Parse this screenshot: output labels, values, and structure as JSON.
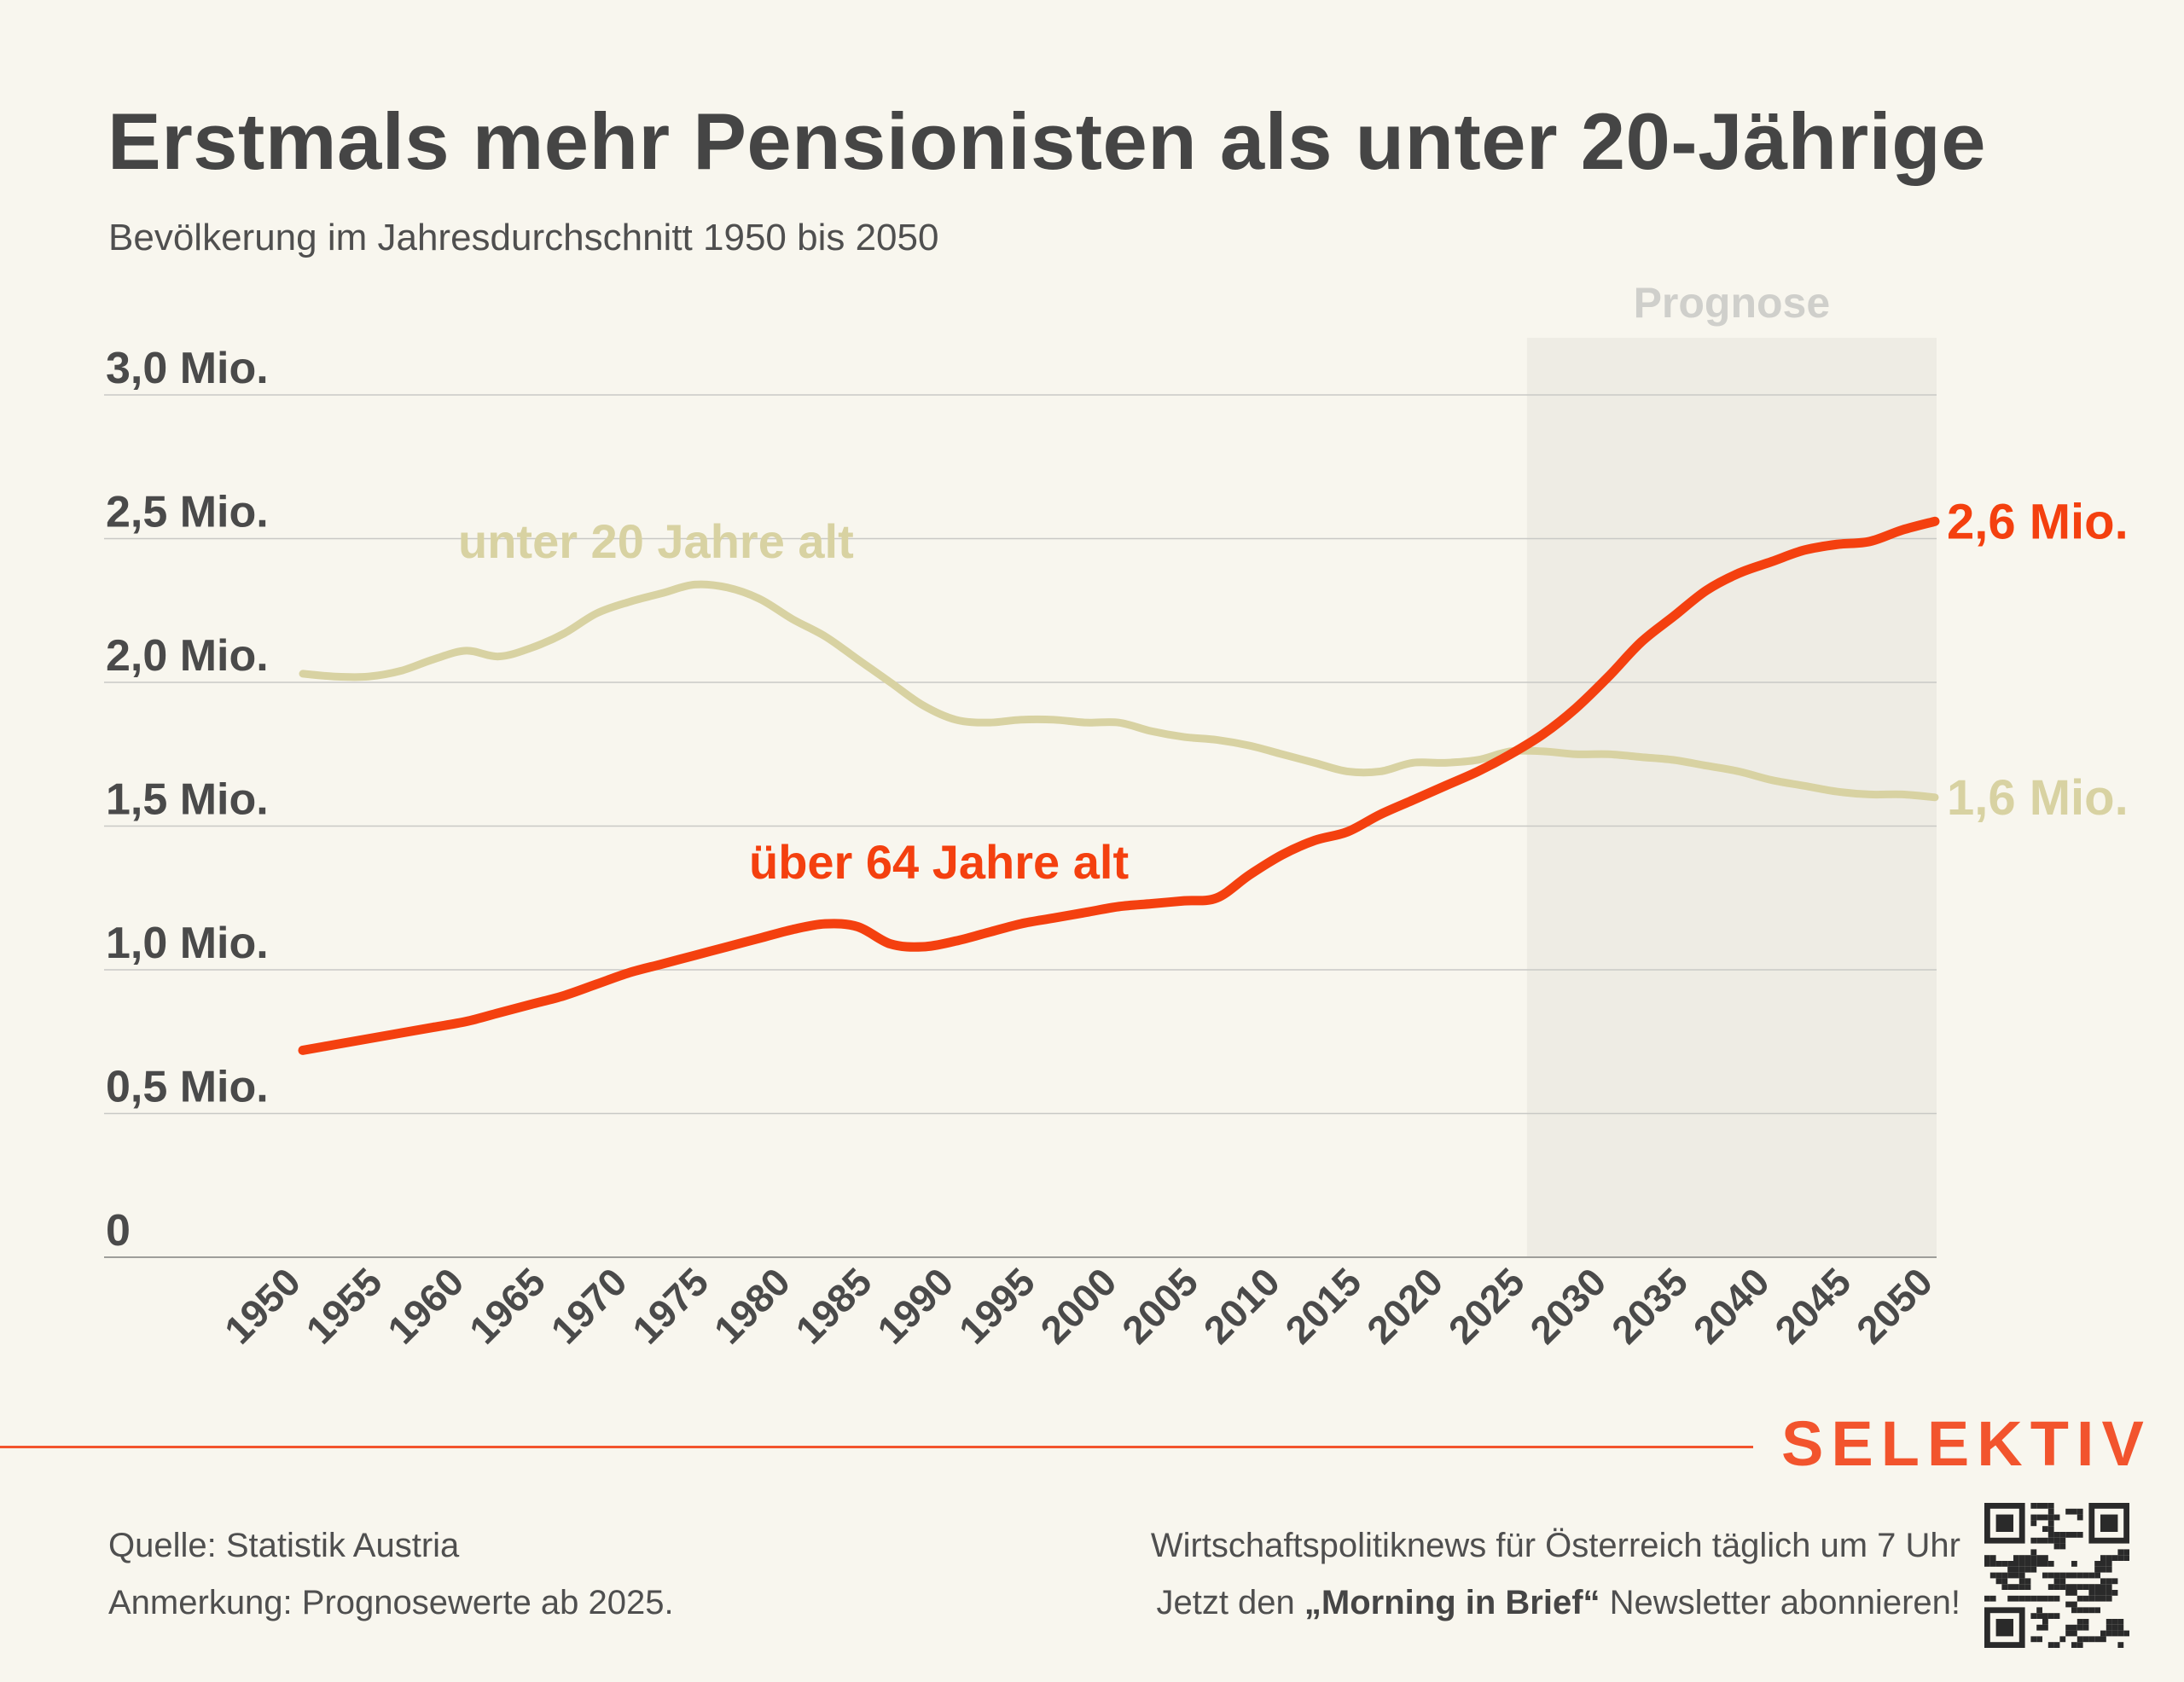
{
  "title": "Erstmals mehr Pensionisten als unter 20-Jährige",
  "subtitle": "Bevölkerung im Jahresdurchschnitt 1950 bis 2050",
  "colors": {
    "background": "#f8f6ee",
    "over64": "#f4400f",
    "over64_forecast": "#f2542d",
    "under20": "#d8d2a2",
    "grid": "#c9c9c5",
    "forecast_band": "#eeece4",
    "brand": "#f2542d"
  },
  "chart_data": {
    "type": "line",
    "forecast_label": "Prognose",
    "forecast_start": 2025,
    "y_ticks": [
      {
        "value": 0,
        "label": "0"
      },
      {
        "value": 0.5,
        "label": "0,5 Mio."
      },
      {
        "value": 1.0,
        "label": "1,0 Mio."
      },
      {
        "value": 1.5,
        "label": "1,5 Mio."
      },
      {
        "value": 2.0,
        "label": "2,0 Mio."
      },
      {
        "value": 2.5,
        "label": "2,5 Mio."
      },
      {
        "value": 3.0,
        "label": "3,0 Mio."
      }
    ],
    "ylim": [
      0,
      3.0
    ],
    "xlim": [
      1950,
      2050
    ],
    "x_ticks": [
      "1950",
      "1955",
      "1960",
      "1965",
      "1970",
      "1975",
      "1980",
      "1985",
      "1990",
      "1995",
      "2000",
      "2005",
      "2010",
      "2015",
      "2020",
      "2025",
      "2030",
      "2035",
      "2040",
      "2045",
      "2050"
    ],
    "x": [
      1950,
      1952,
      1954,
      1956,
      1958,
      1960,
      1962,
      1964,
      1966,
      1968,
      1970,
      1972,
      1974,
      1976,
      1978,
      1980,
      1982,
      1984,
      1986,
      1988,
      1990,
      1992,
      1994,
      1996,
      1998,
      2000,
      2002,
      2004,
      2006,
      2008,
      2010,
      2012,
      2014,
      2016,
      2018,
      2020,
      2022,
      2024,
      2026,
      2028,
      2030,
      2032,
      2034,
      2036,
      2038,
      2040,
      2042,
      2044,
      2046,
      2048,
      2050
    ],
    "series": [
      {
        "name": "unter 20 Jahre alt",
        "end_label": "1,6 Mio.",
        "values": [
          2.03,
          2.02,
          2.02,
          2.04,
          2.08,
          2.11,
          2.09,
          2.12,
          2.17,
          2.24,
          2.28,
          2.31,
          2.34,
          2.33,
          2.29,
          2.22,
          2.16,
          2.08,
          2.0,
          1.92,
          1.87,
          1.86,
          1.87,
          1.87,
          1.86,
          1.86,
          1.83,
          1.81,
          1.8,
          1.78,
          1.75,
          1.72,
          1.69,
          1.69,
          1.72,
          1.72,
          1.73,
          1.76,
          1.76,
          1.75,
          1.75,
          1.74,
          1.73,
          1.71,
          1.69,
          1.66,
          1.64,
          1.62,
          1.61,
          1.61,
          1.6
        ]
      },
      {
        "name": "über 64 Jahre alt",
        "end_label": "2,6 Mio.",
        "values": [
          0.72,
          0.74,
          0.76,
          0.78,
          0.8,
          0.82,
          0.85,
          0.88,
          0.91,
          0.95,
          0.99,
          1.02,
          1.05,
          1.08,
          1.11,
          1.14,
          1.16,
          1.15,
          1.09,
          1.08,
          1.1,
          1.13,
          1.16,
          1.18,
          1.2,
          1.22,
          1.23,
          1.24,
          1.25,
          1.33,
          1.4,
          1.45,
          1.48,
          1.54,
          1.59,
          1.64,
          1.69,
          1.75,
          1.82,
          1.91,
          2.02,
          2.14,
          2.23,
          2.32,
          2.38,
          2.42,
          2.46,
          2.48,
          2.49,
          2.53,
          2.56
        ]
      }
    ]
  },
  "footer": {
    "brand": "SELEKTIV",
    "source": "Quelle: Statistik Austria",
    "note": "Anmerkung: Prognosewerte ab 2025.",
    "tagline": "Wirtschaftspolitiknews für Österreich täglich um 7 Uhr",
    "cta_prefix": "Jetzt den ",
    "cta_bold": "„Morning in Brief“",
    "cta_suffix": " Newsletter abonnieren!",
    "qr_icon": "qr-code-icon"
  }
}
